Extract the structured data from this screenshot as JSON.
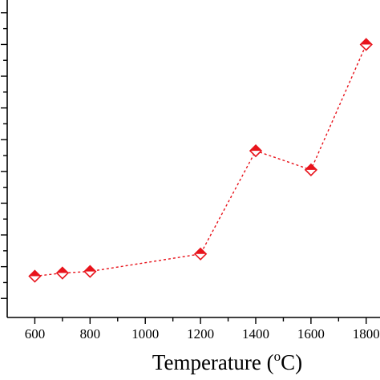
{
  "chart_data": {
    "type": "line",
    "title": "",
    "xlabel": "Temperature (",
    "xlabel_sup": "o",
    "xlabel_suffix": "C)",
    "ylabel": "",
    "xlim": [
      500,
      1850
    ],
    "ylim": [
      0,
      100
    ],
    "xticks": [
      600,
      800,
      1000,
      1200,
      1400,
      1600,
      1800
    ],
    "yticks": [
      6,
      16,
      26,
      36,
      46,
      56,
      66,
      76,
      86,
      96
    ],
    "series": [
      {
        "x": [
          600,
          700,
          800,
          1200,
          1400,
          1600,
          1800
        ],
        "y": [
          13,
          14,
          14.5,
          20,
          52.5,
          46.5,
          86
        ],
        "color": "#e8141c",
        "line_style": "dotted",
        "marker": "half-filled-diamond"
      }
    ]
  }
}
